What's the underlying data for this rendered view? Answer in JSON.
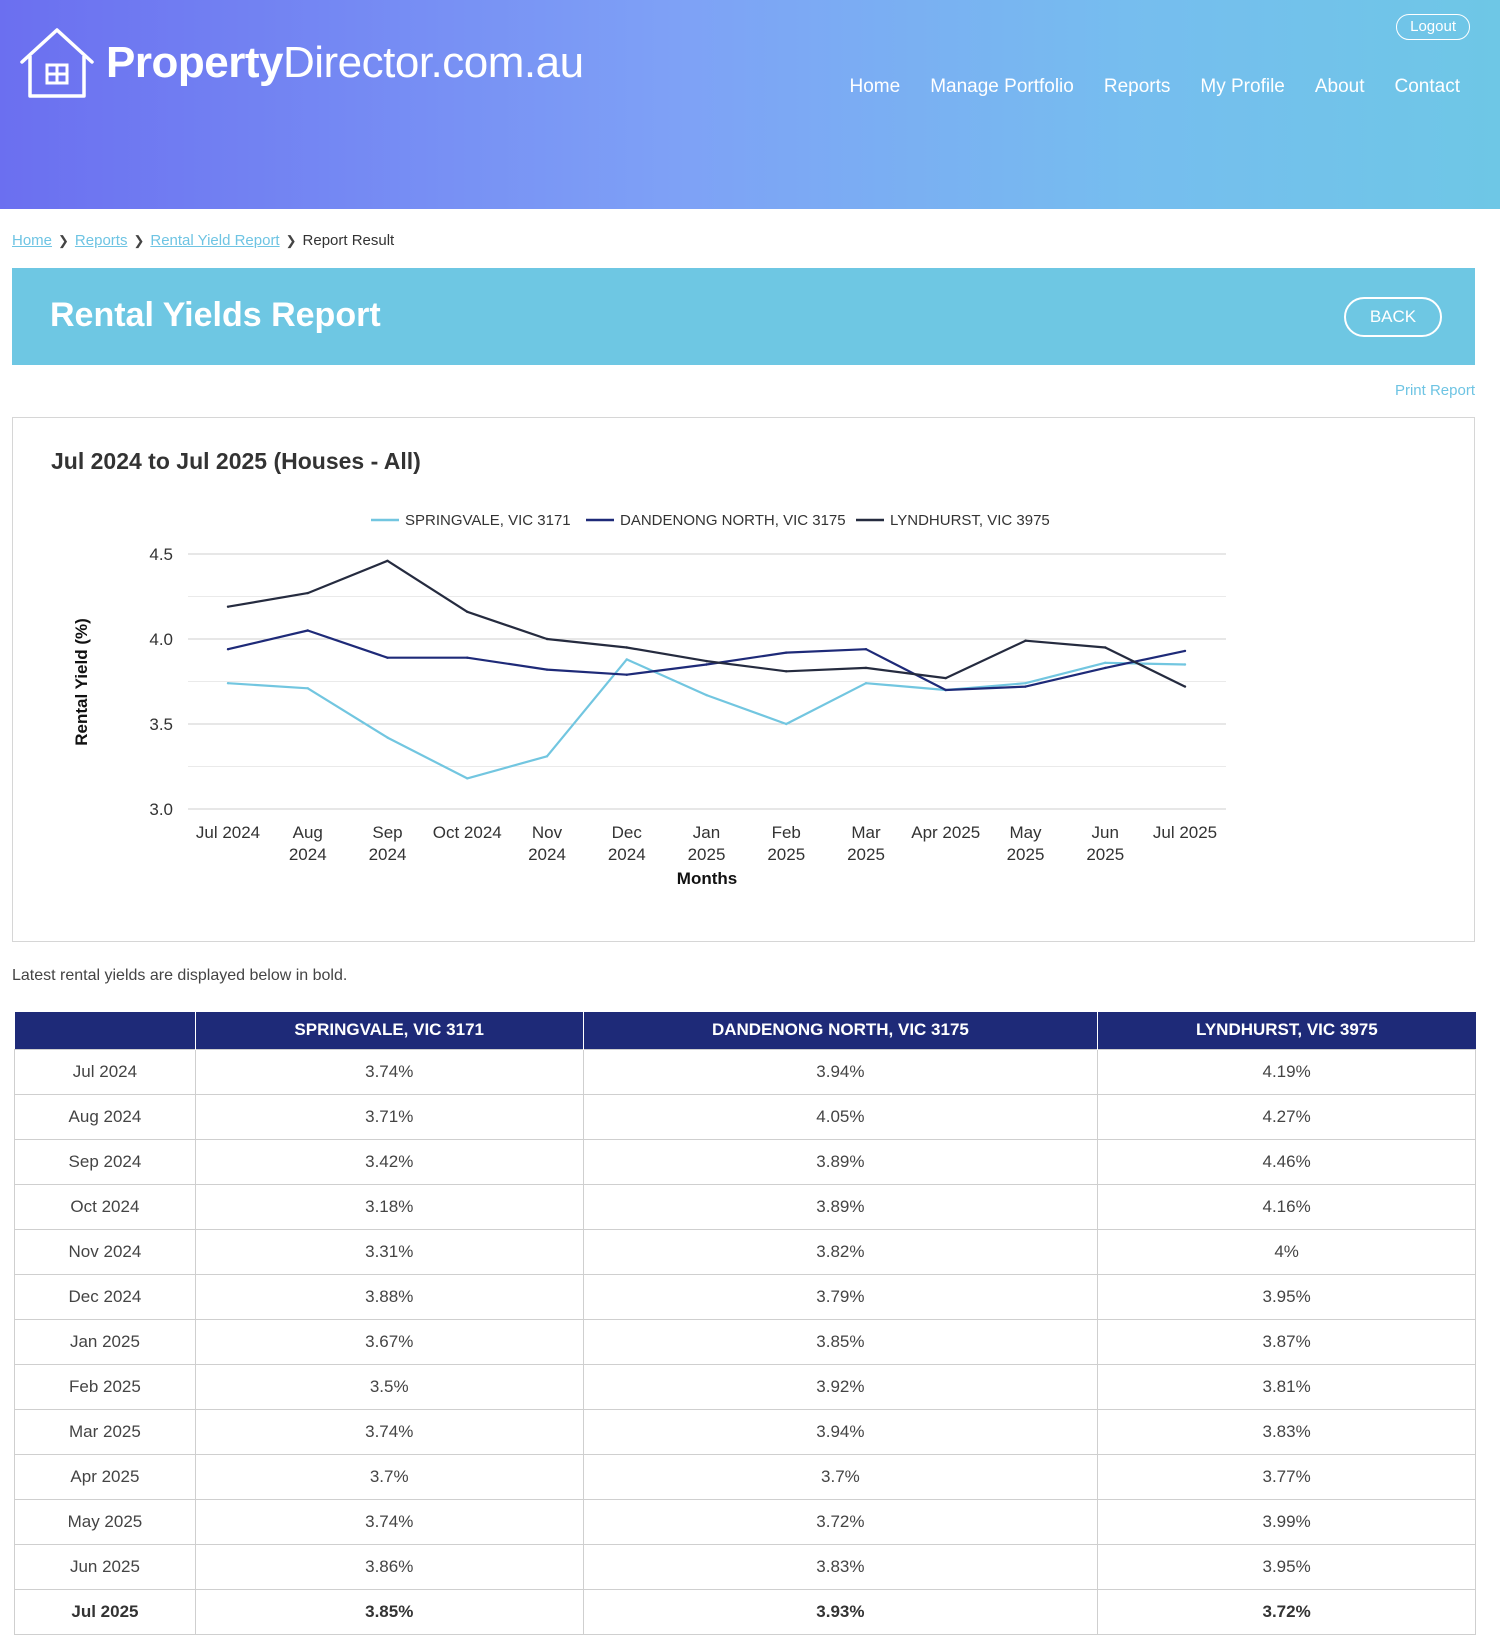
{
  "header": {
    "logo_bold": "Property",
    "logo_rest": "Director.com.au",
    "logout_label": "Logout",
    "nav": [
      "Home",
      "Manage Portfolio",
      "Reports",
      "My Profile",
      "About",
      "Contact"
    ]
  },
  "breadcrumb": {
    "items": [
      "Home",
      "Reports",
      "Rental Yield Report"
    ],
    "current": "Report Result"
  },
  "page": {
    "title": "Rental Yields Report",
    "back_label": "BACK",
    "print_label": "Print Report",
    "note": "Latest rental yields are displayed below in bold."
  },
  "colors": {
    "springvale": "#72c6e0",
    "dandenong": "#1e2a78",
    "lyndhurst": "#252b3f",
    "table_header": "#1e2a78",
    "title_band": "#6ec7e3"
  },
  "chart_data": {
    "type": "line",
    "title": "Jul 2024 to Jul 2025 (Houses - All)",
    "xlabel": "Months",
    "ylabel": "Rental Yield (%)",
    "ylim": [
      3.0,
      4.5
    ],
    "yticks": [
      "4.5",
      "4.0",
      "3.5",
      "3.0"
    ],
    "categories": [
      [
        "Jul 2024"
      ],
      [
        "Aug",
        "2024"
      ],
      [
        "Sep",
        "2024"
      ],
      [
        "Oct 2024"
      ],
      [
        "Nov",
        "2024"
      ],
      [
        "Dec",
        "2024"
      ],
      [
        "Jan",
        "2025"
      ],
      [
        "Feb",
        "2025"
      ],
      [
        "Mar",
        "2025"
      ],
      [
        "Apr 2025"
      ],
      [
        "May",
        "2025"
      ],
      [
        "Jun",
        "2025"
      ],
      [
        "Jul 2025"
      ]
    ],
    "legend_position": "top-center",
    "series": [
      {
        "name": "SPRINGVALE, VIC 3171",
        "color": "#72c6e0",
        "values": [
          3.74,
          3.71,
          3.42,
          3.18,
          3.31,
          3.88,
          3.67,
          3.5,
          3.74,
          3.7,
          3.74,
          3.86,
          3.85
        ]
      },
      {
        "name": "DANDENONG NORTH, VIC 3175",
        "color": "#1e2a78",
        "values": [
          3.94,
          4.05,
          3.89,
          3.89,
          3.82,
          3.79,
          3.85,
          3.92,
          3.94,
          3.7,
          3.72,
          3.83,
          3.93
        ]
      },
      {
        "name": "LYNDHURST, VIC 3975",
        "color": "#252b3f",
        "values": [
          4.19,
          4.27,
          4.46,
          4.16,
          4.0,
          3.95,
          3.87,
          3.81,
          3.83,
          3.77,
          3.99,
          3.95,
          3.72
        ]
      }
    ]
  },
  "table": {
    "headers": [
      "",
      "SPRINGVALE, VIC 3171",
      "DANDENONG NORTH, VIC 3175",
      "LYNDHURST, VIC 3975"
    ],
    "rows": [
      [
        "Jul 2024",
        "3.74%",
        "3.94%",
        "4.19%"
      ],
      [
        "Aug 2024",
        "3.71%",
        "4.05%",
        "4.27%"
      ],
      [
        "Sep 2024",
        "3.42%",
        "3.89%",
        "4.46%"
      ],
      [
        "Oct 2024",
        "3.18%",
        "3.89%",
        "4.16%"
      ],
      [
        "Nov 2024",
        "3.31%",
        "3.82%",
        "4%"
      ],
      [
        "Dec 2024",
        "3.88%",
        "3.79%",
        "3.95%"
      ],
      [
        "Jan 2025",
        "3.67%",
        "3.85%",
        "3.87%"
      ],
      [
        "Feb 2025",
        "3.5%",
        "3.92%",
        "3.81%"
      ],
      [
        "Mar 2025",
        "3.74%",
        "3.94%",
        "3.83%"
      ],
      [
        "Apr 2025",
        "3.7%",
        "3.7%",
        "3.77%"
      ],
      [
        "May 2025",
        "3.74%",
        "3.72%",
        "3.99%"
      ],
      [
        "Jun 2025",
        "3.86%",
        "3.83%",
        "3.95%"
      ],
      [
        "Jul 2025",
        "3.85%",
        "3.93%",
        "3.72%"
      ]
    ]
  }
}
